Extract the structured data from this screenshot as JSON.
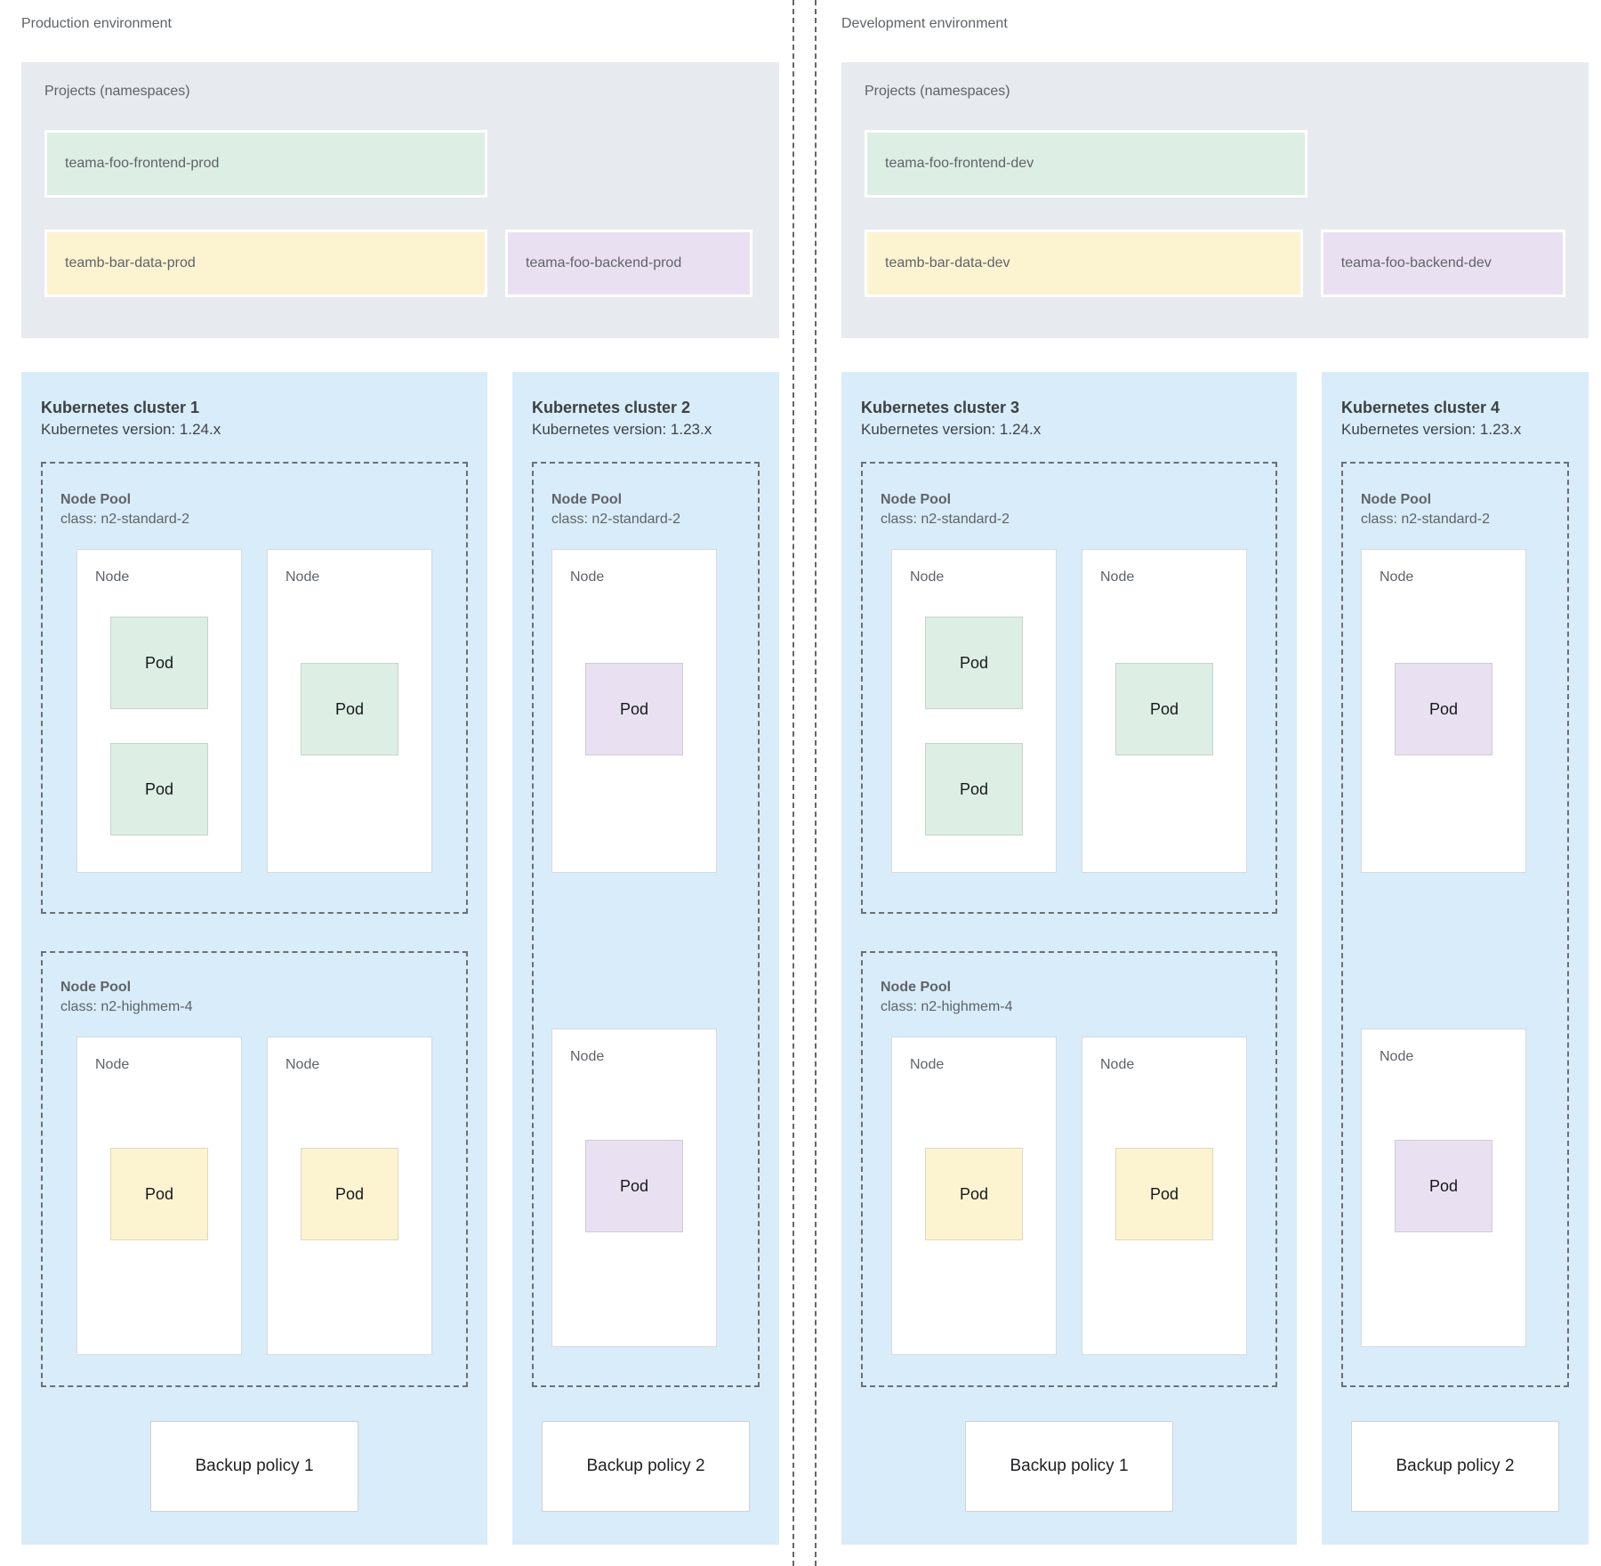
{
  "colors": {
    "cluster_bg": "#d8ecf9",
    "projects_bg": "#e7eaee",
    "frontend_green": "#ddeee4",
    "data_yellow": "#fcf3d1",
    "backend_purple": "#e9e1f2",
    "dashed_border": "#6b7074",
    "text_gray": "#5f6368",
    "text_dark": "#3c4043"
  },
  "labels": {
    "node": "Node",
    "pod": "Pod"
  },
  "environments": [
    {
      "label": "Production environment",
      "projects": {
        "title": "Projects (namespaces)",
        "frontend": "teama-foo-frontend-prod",
        "data": "teamb-bar-data-prod",
        "backend": "teama-foo-backend-prod"
      },
      "clusters": [
        {
          "title": "Kubernetes cluster 1",
          "version": "Kubernetes version: 1.24.x",
          "pools": [
            {
              "label": "Node Pool",
              "class": "class: n2-standard-2"
            },
            {
              "label": "Node Pool",
              "class": "class: n2-highmem-4"
            }
          ],
          "backup": "Backup policy 1"
        },
        {
          "title": "Kubernetes cluster 2",
          "version": "Kubernetes version: 1.23.x",
          "pools": [
            {
              "label": "Node Pool",
              "class": "class: n2-standard-2"
            }
          ],
          "backup": "Backup policy 2"
        }
      ]
    },
    {
      "label": "Development environment",
      "projects": {
        "title": "Projects (namespaces)",
        "frontend": "teama-foo-frontend-dev",
        "data": "teamb-bar-data-dev",
        "backend": "teama-foo-backend-dev"
      },
      "clusters": [
        {
          "title": "Kubernetes cluster 3",
          "version": "Kubernetes version: 1.24.x",
          "pools": [
            {
              "label": "Node Pool",
              "class": "class: n2-standard-2"
            },
            {
              "label": "Node Pool",
              "class": "class: n2-highmem-4"
            }
          ],
          "backup": "Backup policy 1"
        },
        {
          "title": "Kubernetes cluster 4",
          "version": "Kubernetes version: 1.23.x",
          "pools": [
            {
              "label": "Node Pool",
              "class": "class: n2-standard-2"
            }
          ],
          "backup": "Backup policy 2"
        }
      ]
    }
  ]
}
